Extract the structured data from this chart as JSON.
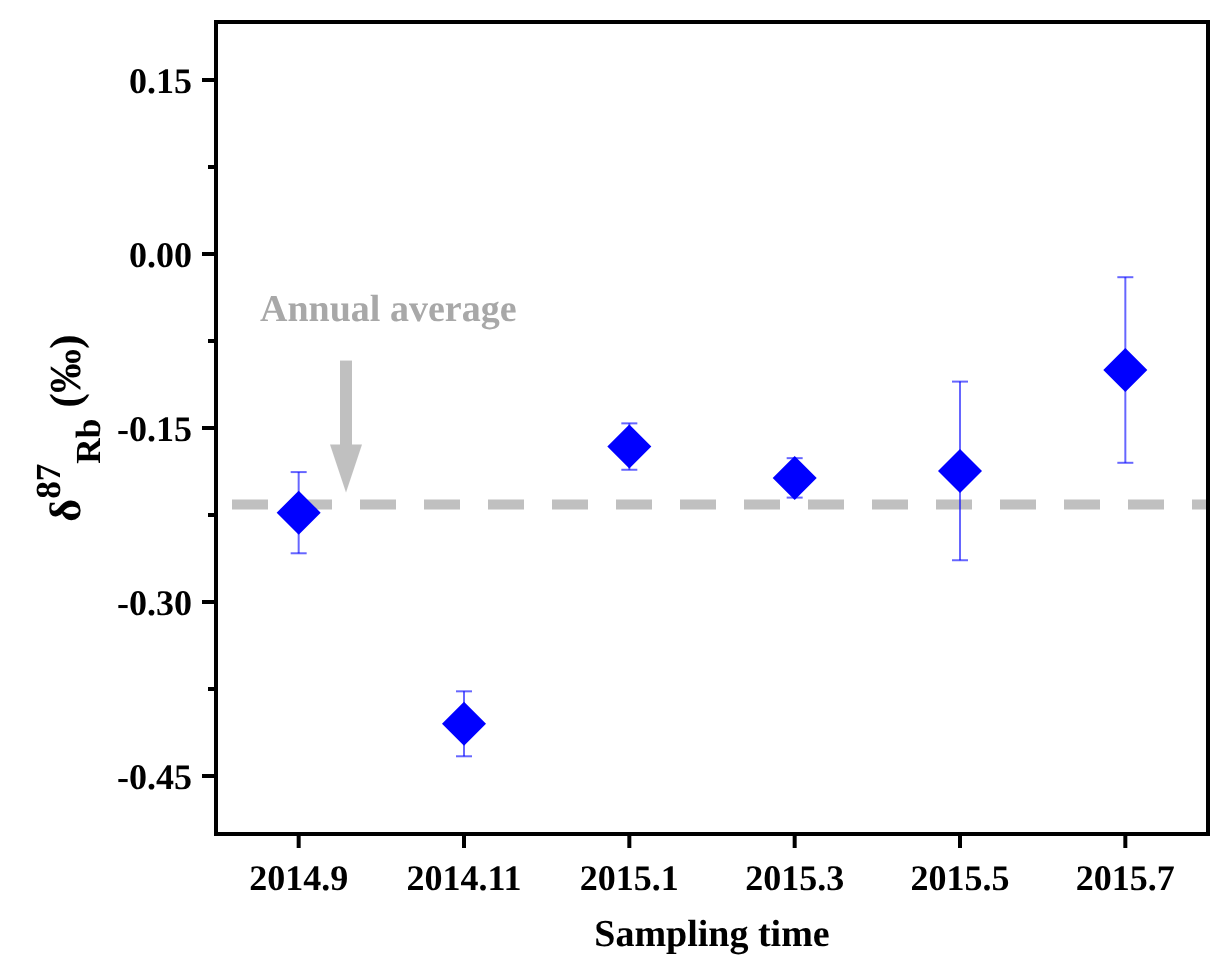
{
  "chart_data": {
    "type": "scatter",
    "xlabel": "Sampling time",
    "ylabel": "δ$^{87}$$_{Rb}$ (‰)",
    "categories": [
      "2014.9",
      "2014.11",
      "2015.1",
      "2015.3",
      "2015.5",
      "2015.7"
    ],
    "series": [
      {
        "color": "#0000ff",
        "values": [
          -0.223,
          -0.405,
          -0.166,
          -0.193,
          -0.187,
          -0.1
        ],
        "errors": [
          0.035,
          0.028,
          0.02,
          0.017,
          0.077,
          0.08
        ]
      }
    ],
    "marker": "diamond",
    "ylim": [
      -0.5,
      0.2
    ],
    "yticks": [
      {
        "value": 0.15,
        "label": "0.15"
      },
      {
        "value": 0.075,
        "label": null
      },
      {
        "value": 0,
        "label": "0.00"
      },
      {
        "value": -0.075,
        "label": null
      },
      {
        "value": -0.15,
        "label": "-0.15"
      },
      {
        "value": -0.225,
        "label": null
      },
      {
        "value": -0.3,
        "label": "-0.30"
      },
      {
        "value": -0.375,
        "label": null
      },
      {
        "value": -0.45,
        "label": "-0.45"
      }
    ],
    "ref_lines": [
      {
        "axis": "y",
        "value": -0.216,
        "label": "Annual average",
        "color": "#c0c0c0",
        "line_style": "dashed"
      }
    ],
    "grid": false
  }
}
